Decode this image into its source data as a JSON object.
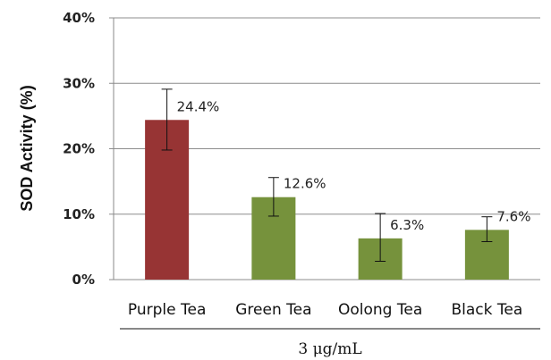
{
  "chart_data": {
    "type": "bar",
    "categories": [
      "Purple Tea",
      "Green Tea",
      "Oolong Tea",
      "Black Tea"
    ],
    "values": [
      24.4,
      12.6,
      6.3,
      7.6
    ],
    "data_labels": [
      "24.4%",
      "12.6%",
      "6.3%",
      "7.6%"
    ],
    "error_low": [
      19.8,
      9.7,
      2.8,
      5.8
    ],
    "error_high": [
      29.1,
      15.6,
      10.1,
      9.6
    ],
    "bar_colors": [
      "#973434",
      "#76923c",
      "#76923c",
      "#76923c"
    ],
    "title": "",
    "xlabel": "3 μg/mL",
    "ylabel": "SOD Activity (%)",
    "ylim": [
      0,
      40
    ],
    "yticks": [
      0,
      10,
      20,
      30,
      40
    ],
    "ytick_labels": [
      "0%",
      "10%",
      "20%",
      "30%",
      "40%"
    ],
    "grid": true
  }
}
